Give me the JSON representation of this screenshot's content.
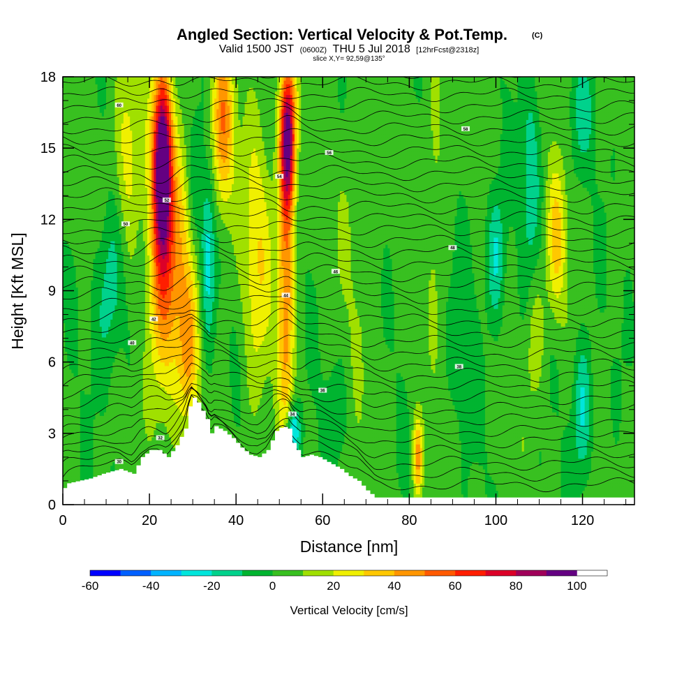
{
  "chart_data": {
    "type": "heatmap",
    "title": "Angled Section: Vertical Velocity & Pot.Temp.",
    "title_suffix": "(C)",
    "subtitle": {
      "valid": "Valid 1500 JST",
      "utc": "(0600Z)",
      "date": "THU 5 Jul 2018",
      "forecast": "[12hrFcst@2318z]"
    },
    "slice_label": "slice X,Y= 92,59@135°",
    "xlabel": "Distance [nm]",
    "ylabel": "Height [Kft MSL]",
    "xlim": [
      0,
      132
    ],
    "ylim": [
      0,
      18
    ],
    "x_ticks": [
      0,
      20,
      40,
      60,
      80,
      100,
      120
    ],
    "y_ticks": [
      0,
      3,
      6,
      9,
      12,
      15,
      18
    ],
    "x_tick_labels": [
      "0",
      "20",
      "40",
      "60",
      "80",
      "100",
      "120"
    ],
    "y_tick_labels": [
      "0",
      "3",
      "6",
      "9",
      "12",
      "15",
      "18"
    ],
    "colorbar": {
      "label": "Vertical Velocity [cm/s]",
      "min": -60,
      "max": 110,
      "step": 10,
      "tick_values": [
        -60,
        -40,
        -20,
        0,
        20,
        40,
        60,
        80,
        100
      ],
      "tick_labels": [
        "-60",
        "-40",
        "-20",
        "0",
        "20",
        "40",
        "60",
        "80",
        "100"
      ],
      "colors": [
        "#0000ff",
        "#0060ff",
        "#00b4ff",
        "#00e6dc",
        "#00d28c",
        "#00b430",
        "#38c020",
        "#a0e000",
        "#f0f000",
        "#ffc800",
        "#ff9600",
        "#ff5a00",
        "#ff1e00",
        "#dc0028",
        "#a0005a",
        "#640082"
      ]
    },
    "terrain_kft": [
      [
        0,
        0.7
      ],
      [
        1,
        0.9
      ],
      [
        6,
        1.1
      ],
      [
        9,
        1.3
      ],
      [
        13,
        1.5
      ],
      [
        16,
        1.3
      ],
      [
        18,
        2.0
      ],
      [
        20,
        2.3
      ],
      [
        22,
        2.3
      ],
      [
        24,
        2.0
      ],
      [
        26,
        2.5
      ],
      [
        28,
        3.2
      ],
      [
        29.5,
        4.6
      ],
      [
        31,
        4.3
      ],
      [
        33,
        3.6
      ],
      [
        34,
        3.0
      ],
      [
        35,
        3.3
      ],
      [
        37,
        3.1
      ],
      [
        39,
        2.8
      ],
      [
        41,
        2.4
      ],
      [
        43,
        2.1
      ],
      [
        45,
        2.0
      ],
      [
        47,
        2.3
      ],
      [
        49,
        3.1
      ],
      [
        50.5,
        3.3
      ],
      [
        52,
        3.2
      ],
      [
        53,
        2.6
      ],
      [
        55,
        2.0
      ],
      [
        57,
        2.1
      ],
      [
        59,
        2.0
      ],
      [
        62,
        1.7
      ],
      [
        64,
        1.5
      ],
      [
        66,
        1.2
      ],
      [
        68,
        1.0
      ],
      [
        70,
        0.6
      ],
      [
        72,
        0.3
      ],
      [
        132,
        0.3
      ]
    ],
    "w_features": [
      {
        "x": 23,
        "z": 14.5,
        "w": 90,
        "sx": 1.4,
        "sz": 2.4
      },
      {
        "x": 22.5,
        "z": 11.0,
        "w": 30,
        "sx": 2.2,
        "sz": 5.0
      },
      {
        "x": 15,
        "z": 15.0,
        "w": 25,
        "sx": 2.0,
        "sz": 3.0
      },
      {
        "x": 26,
        "z": 10.0,
        "w": 35,
        "sx": 3.5,
        "sz": 3.5
      },
      {
        "x": 29,
        "z": 6.0,
        "w": 25,
        "sx": 1.6,
        "sz": 2.0
      },
      {
        "x": 37,
        "z": 16.0,
        "w": 45,
        "sx": 1.8,
        "sz": 2.6
      },
      {
        "x": 52,
        "z": 15.5,
        "w": 85,
        "sx": 1.3,
        "sz": 2.2
      },
      {
        "x": 51.5,
        "z": 9.0,
        "w": 45,
        "sx": 1.3,
        "sz": 4.5
      },
      {
        "x": 45,
        "z": 10.5,
        "w": 25,
        "sx": 2.5,
        "sz": 4.0
      },
      {
        "x": 33.5,
        "z": 10.5,
        "w": -30,
        "sx": 1.2,
        "sz": 2.5
      },
      {
        "x": 30.5,
        "z": 13.0,
        "w": -15,
        "sx": 1.2,
        "sz": 2.0
      },
      {
        "x": 11,
        "z": 9.0,
        "w": -20,
        "sx": 2.5,
        "sz": 2.5
      },
      {
        "x": 53,
        "z": 3.0,
        "w": -40,
        "sx": 1.2,
        "sz": 0.8
      },
      {
        "x": 82,
        "z": 2.0,
        "w": 40,
        "sx": 0.8,
        "sz": 1.2
      },
      {
        "x": 114,
        "z": 11.0,
        "w": 30,
        "sx": 1.6,
        "sz": 2.2
      },
      {
        "x": 108,
        "z": 14.0,
        "w": -20,
        "sx": 1.5,
        "sz": 3.0
      },
      {
        "x": 100,
        "z": 10.5,
        "w": -25,
        "sx": 1.5,
        "sz": 2.0
      },
      {
        "x": 120,
        "z": 4.0,
        "w": -25,
        "sx": 1.5,
        "sz": 2.0
      },
      {
        "x": 120,
        "z": 16.5,
        "w": -15,
        "sx": 2.0,
        "sz": 1.6
      },
      {
        "x": 86,
        "z": 14.0,
        "w": 12,
        "sx": 1.6,
        "sz": 4.0
      },
      {
        "x": 68,
        "z": 12.0,
        "w": 8,
        "sx": 3.0,
        "sz": 5.0
      },
      {
        "x": 93,
        "z": 7.0,
        "w": -10,
        "sx": 2.0,
        "sz": 3.0
      },
      {
        "x": 109,
        "z": 7.0,
        "w": 15,
        "sx": 1.5,
        "sz": 2.0
      },
      {
        "x": 63,
        "z": 4.0,
        "w": -10,
        "sx": 2.0,
        "sz": 1.5
      }
    ],
    "pot_temp_contours": {
      "first_level_c": 28,
      "interval_c": 0.5,
      "count": 38,
      "labels": [
        "30",
        "32",
        "34",
        "36",
        "38",
        "40",
        "42",
        "44",
        "46",
        "48",
        "50",
        "52",
        "54",
        "56",
        "58",
        "60"
      ]
    }
  }
}
